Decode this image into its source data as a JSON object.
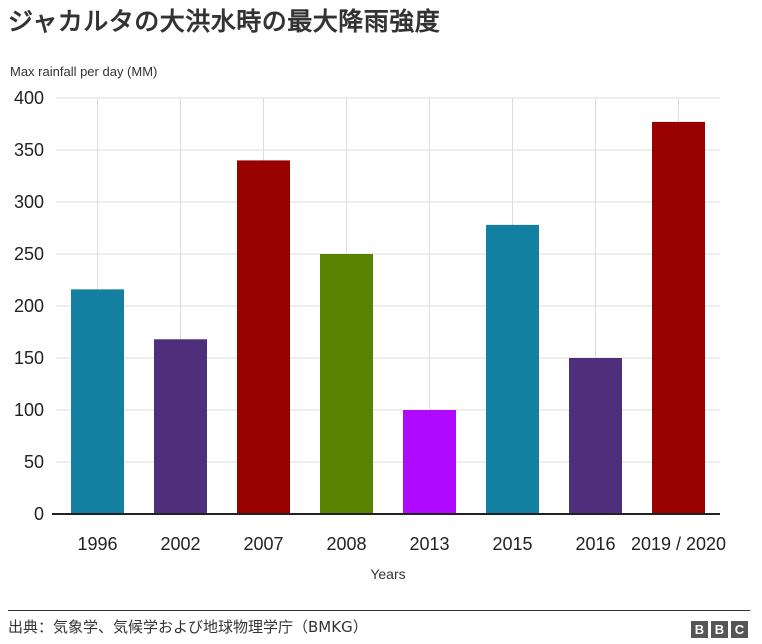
{
  "title": "ジャカルタの大洪水時の最大降雨強度",
  "source": "出典：気象学、気候学および地球物理学庁（BMKG）",
  "logo": {
    "letters": [
      "B",
      "B",
      "C"
    ]
  },
  "chart_data": {
    "type": "bar",
    "title": "ジャカルタの大洪水時の最大降雨強度",
    "ylabel": "Max rainfall per day (MM)",
    "xlabel": "Years",
    "ylim": [
      0,
      400
    ],
    "yticks": [
      0,
      50,
      100,
      150,
      200,
      250,
      300,
      350,
      400
    ],
    "grid": true,
    "categories": [
      "1996",
      "2002",
      "2007",
      "2008",
      "2013",
      "2015",
      "2016",
      "2019 / 2020"
    ],
    "values": [
      216,
      168,
      340,
      250,
      100,
      278,
      150,
      377
    ],
    "colors": [
      "#1380a1",
      "#4f2e7c",
      "#990000",
      "#588300",
      "#af0aff",
      "#1380a1",
      "#4f2e7c",
      "#990000"
    ]
  }
}
